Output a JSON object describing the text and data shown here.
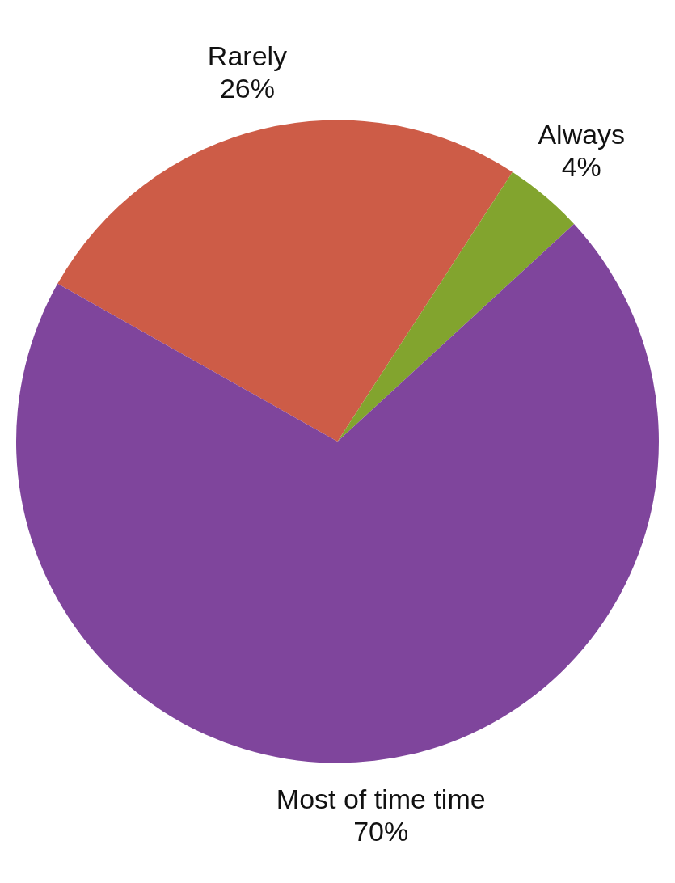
{
  "chart_data": {
    "type": "pie",
    "categories": [
      "Rarely",
      "Always",
      "Most of time time"
    ],
    "values": [
      26,
      4,
      70
    ],
    "colors": [
      "#cd5c47",
      "#82a42e",
      "#7f459c"
    ],
    "value_labels": [
      "26%",
      "4%",
      "70%"
    ],
    "legend": false
  }
}
